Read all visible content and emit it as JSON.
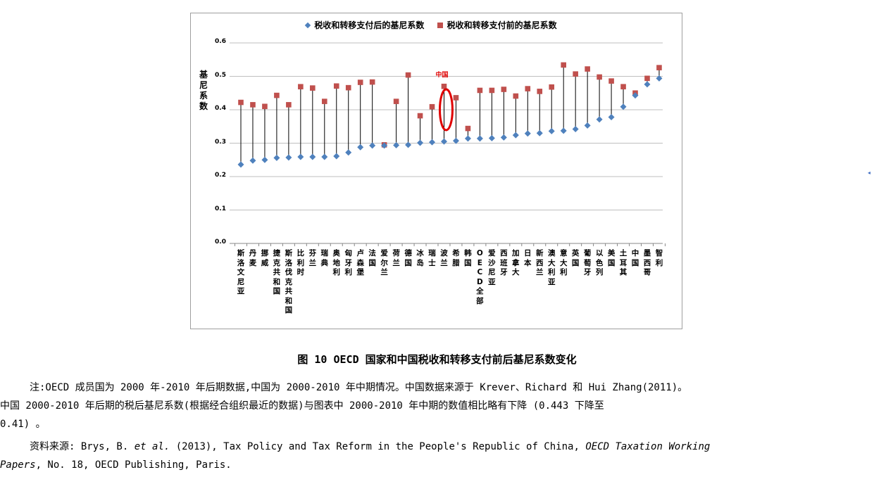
{
  "chart_data": {
    "type": "scatter",
    "subtype": "dumbbell",
    "ylabel": "基尼系数",
    "ylim": [
      0.0,
      0.6
    ],
    "yticks": [
      "0.0",
      "0.1",
      "0.2",
      "0.3",
      "0.4",
      "0.5",
      "0.6"
    ],
    "grid": true,
    "legend_position": "top",
    "categories": [
      "斯洛文尼亚",
      "丹麦",
      "挪威",
      "捷克共和国",
      "斯洛伐克共和国",
      "比利时",
      "芬兰",
      "瑞典",
      "奥地利",
      "匈牙利",
      "卢森堡",
      "法国",
      "爱尔兰",
      "荷兰",
      "德国",
      "冰岛",
      "瑞士",
      "波兰",
      "希腊",
      "韩国",
      "OECD全部",
      "爱沙尼亚",
      "西班牙",
      "加拿大",
      "日本",
      "新西兰",
      "澳大利亚",
      "意大利",
      "英国",
      "葡萄牙",
      "以色列",
      "美国",
      "土耳其",
      "中国",
      "墨西哥",
      "智利"
    ],
    "series": [
      {
        "name": "税收和转移支付后的基尼系数",
        "marker": "diamond",
        "color": "#4f81bd",
        "values": [
          0.236,
          0.248,
          0.25,
          0.256,
          0.257,
          0.259,
          0.259,
          0.259,
          0.261,
          0.272,
          0.288,
          0.293,
          0.293,
          0.294,
          0.295,
          0.301,
          0.303,
          0.305,
          0.307,
          0.314,
          0.314,
          0.315,
          0.317,
          0.324,
          0.329,
          0.33,
          0.336,
          0.337,
          0.342,
          0.353,
          0.371,
          0.378,
          0.409,
          0.443,
          0.476,
          0.494
        ]
      },
      {
        "name": "税收和转移支付前的基尼系数",
        "marker": "square",
        "color": "#c0504d",
        "values": [
          0.422,
          0.415,
          0.41,
          0.443,
          0.415,
          0.469,
          0.465,
          0.425,
          0.471,
          0.466,
          0.482,
          0.483,
          0.295,
          0.425,
          0.504,
          0.382,
          0.409,
          0.47,
          0.436,
          0.344,
          0.458,
          0.458,
          0.461,
          0.441,
          0.463,
          0.455,
          0.468,
          0.534,
          0.507,
          0.522,
          0.498,
          0.486,
          0.469,
          0.45,
          0.494,
          0.526
        ]
      }
    ],
    "annotations": [
      {
        "text": "中国",
        "target": "波兰",
        "shape": "ellipse",
        "color": "#e00000"
      }
    ]
  },
  "caption": "图 10 OECD 国家和中国税收和转移支付前后基尼系数变化",
  "note_line1": "注:OECD 成员国为 2000 年-2010 年后期数据,中国为 2000-2010 年中期情况。中国数据来源于 Krever、Richard 和 Hui Zhang(2011)。",
  "note_line2": "中国 2000-2010 年后期的税后基尼系数(根据经合组织最近的数据)与图表中 2000-2010 年中期的数值相比略有下降 (0.443 下降至",
  "note_line3": "0.41) 。",
  "source": {
    "prefix": "资料来源: Brys, B. ",
    "etal": "et al.",
    "mid": " (2013), Tax Policy and Tax Reform in the People's Republic of China, ",
    "series_italic": "OECD Taxation Working",
    "series_italic2": "Papers",
    "suffix": ", No. 18, OECD Publishing, Paris."
  },
  "colors": {
    "after": "#4f81bd",
    "before": "#c0504d",
    "annotation": "#e00000"
  }
}
